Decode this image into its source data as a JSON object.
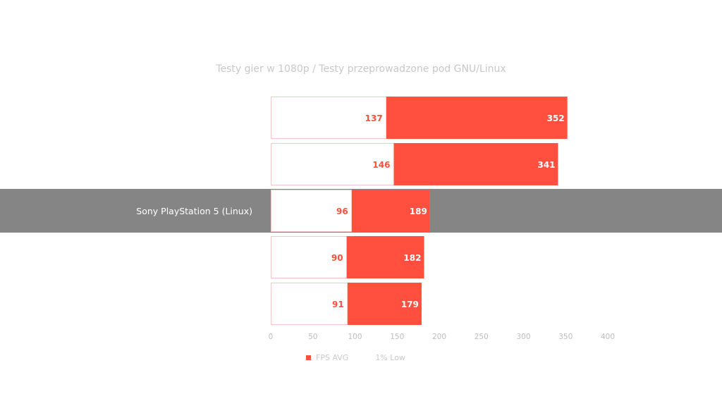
{
  "chart_data": {
    "type": "bar",
    "orientation": "horizontal",
    "title": "Testy gier w 1080p / Testy przeprowadzone pod GNU/Linux",
    "categories": [
      "",
      "",
      "Sony PlayStation 5 (Linux)",
      "",
      ""
    ],
    "highlighted_category_index": 2,
    "series": [
      {
        "name": "FPS AVG",
        "values": [
          352,
          341,
          189,
          182,
          179
        ],
        "color": "#ff4f3f"
      },
      {
        "name": "1% Low",
        "values": [
          137,
          146,
          96,
          90,
          91
        ],
        "color": "#ffffff"
      }
    ],
    "xlim": [
      0,
      400
    ],
    "x_ticks": [
      0,
      50,
      100,
      150,
      200,
      250,
      300,
      350,
      400
    ],
    "legend_position": "bottom",
    "grid": false
  },
  "colors": {
    "highlight_band": "#858585",
    "bar_outline": "#f3c6c6",
    "avg_label": "#ffffff",
    "low_label": "#ff4f3f",
    "axis_text": "#bdbdbd",
    "category_label_highlight": "#ffffff"
  }
}
